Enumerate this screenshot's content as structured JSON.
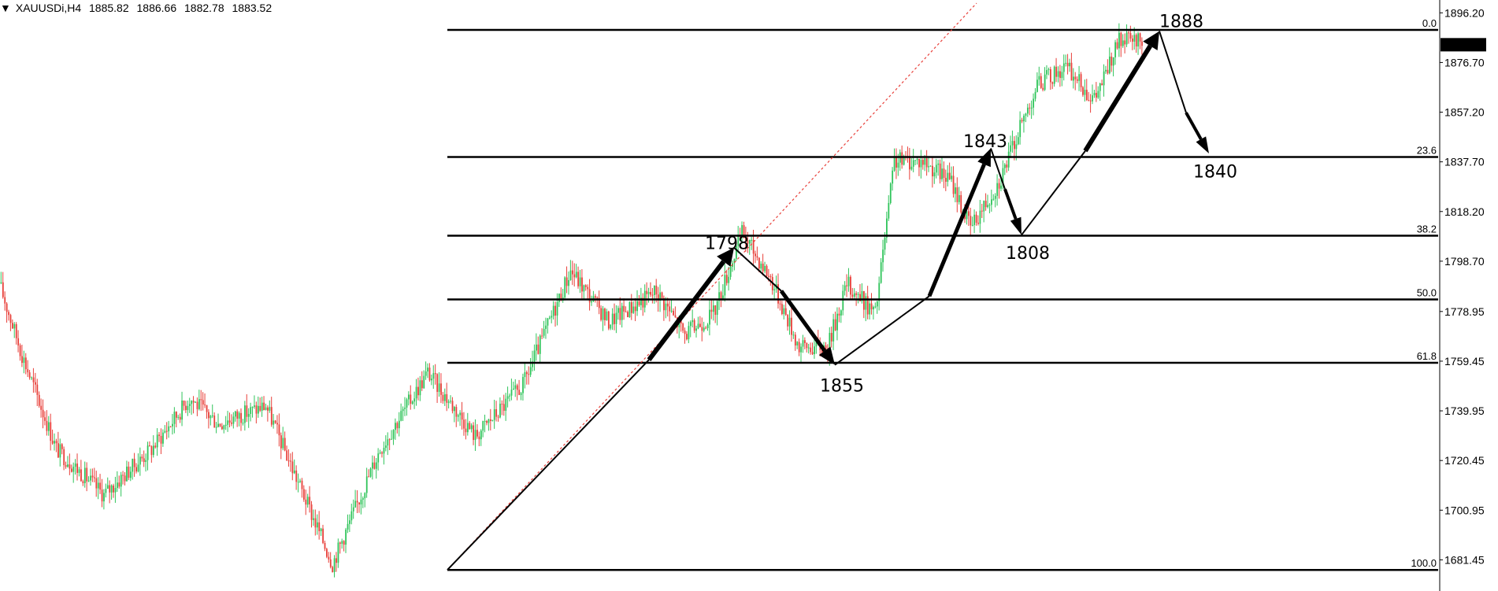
{
  "header": {
    "marker": "▼",
    "symbol": "XAUUSDi,H4",
    "open": "1885.82",
    "high": "1886.66",
    "low": "1882.78",
    "close": "1883.52"
  },
  "chart_data": {
    "type": "candlestick",
    "title": "",
    "symbol": "XAUUSDi",
    "timeframe": "H4",
    "ylim": [
      1672,
      1900
    ],
    "price_ticks": [
      "1896.20",
      "1876.70",
      "1857.20",
      "1837.70",
      "1818.20",
      "1798.70",
      "1778.95",
      "1759.45",
      "1739.95",
      "1720.45",
      "1700.95",
      "1681.45"
    ],
    "current_price": "1883.52",
    "grid": false,
    "fibonacci": {
      "levels": [
        {
          "label": "0.0",
          "price": 1889.5
        },
        {
          "label": "23.6",
          "price": 1839.6
        },
        {
          "label": "38.2",
          "price": 1808.7
        },
        {
          "label": "50.0",
          "price": 1783.7
        },
        {
          "label": "61.8",
          "price": 1758.8
        },
        {
          "label": "100.0",
          "price": 1677.5
        }
      ]
    },
    "annotations": [
      {
        "text": "1888",
        "price": 1893
      },
      {
        "text": "1843",
        "price": 1846
      },
      {
        "text": "1840",
        "price": 1834
      },
      {
        "text": "1798",
        "price": 1806
      },
      {
        "text": "1808",
        "price": 1802
      },
      {
        "text": "1855",
        "price": 1750
      }
    ],
    "waypoints": [
      {
        "label": "start",
        "price": 1677.5
      },
      {
        "label": "1798",
        "price": 1804
      },
      {
        "label": "1855",
        "price": 1758
      },
      {
        "label": "1843",
        "price": 1843
      },
      {
        "label": "1808",
        "price": 1809
      },
      {
        "label": "1888",
        "price": 1889
      },
      {
        "label": "1840",
        "price": 1841
      }
    ],
    "colors": {
      "up": "#2fc45a",
      "down": "#e8403a",
      "fib_line": "#000000",
      "trend_line": "#e8403a"
    }
  }
}
